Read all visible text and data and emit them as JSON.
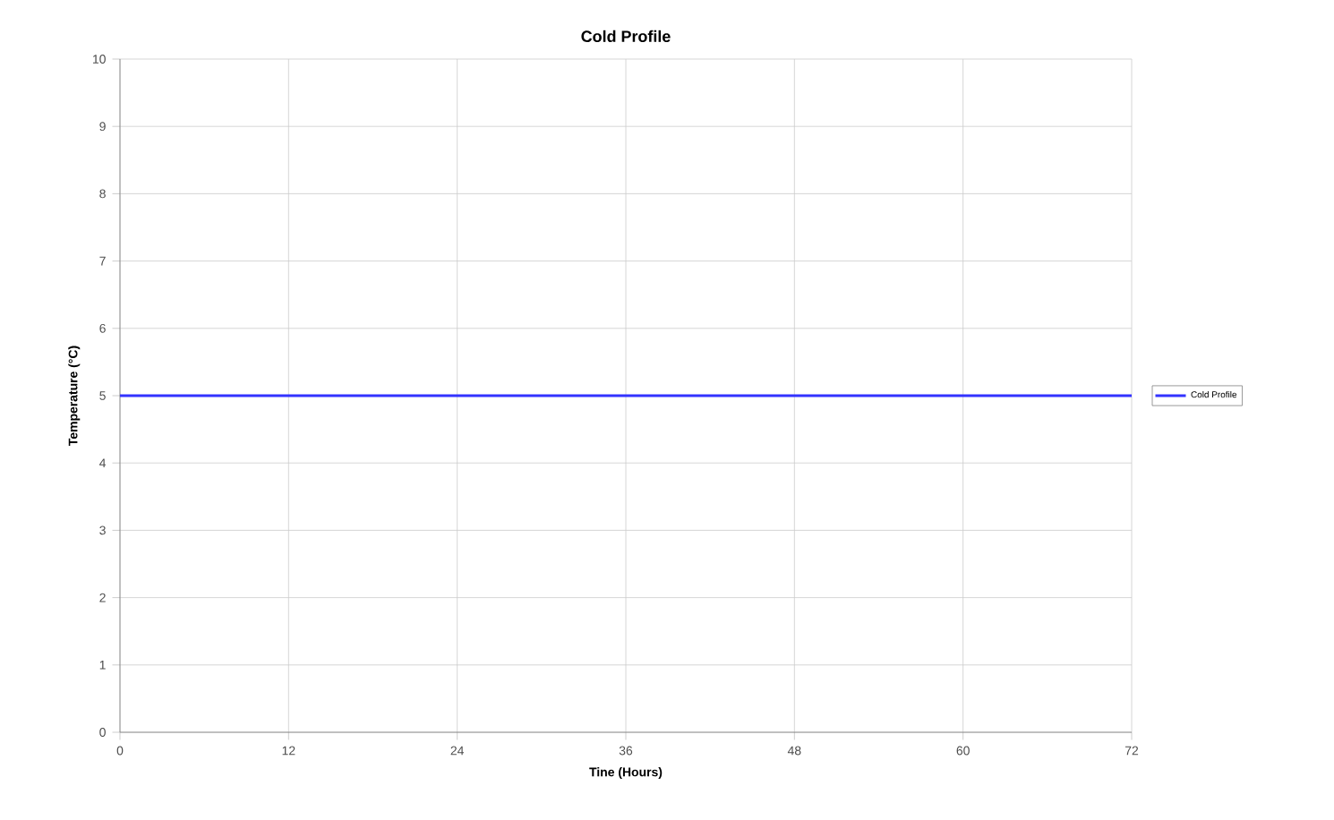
{
  "chart_data": {
    "type": "line",
    "title": "Cold Profile",
    "xlabel": "Tine (Hours)",
    "ylabel": "Temperature (°C)",
    "x": [
      0,
      72
    ],
    "series": [
      {
        "name": "Cold Profile",
        "color": "#3333ff",
        "values": [
          5,
          5
        ]
      }
    ],
    "xlim": [
      0,
      72
    ],
    "xticks": [
      0,
      12,
      24,
      36,
      48,
      60,
      72
    ],
    "ylim": [
      0,
      10
    ],
    "yticks": [
      0,
      1,
      2,
      3,
      4,
      5,
      6,
      7,
      8,
      9,
      10
    ],
    "grid": true,
    "legend": "right",
    "marker": "none",
    "line_style": "solid"
  }
}
